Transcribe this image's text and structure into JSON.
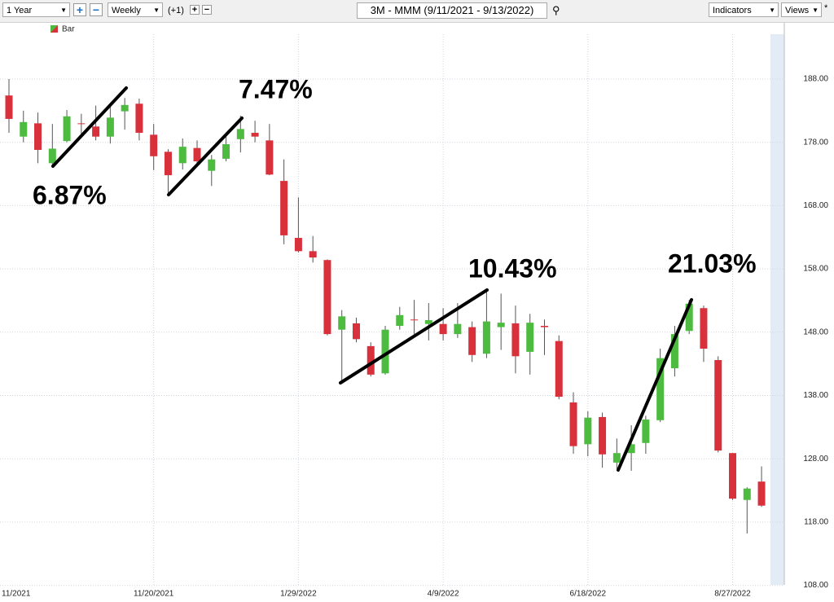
{
  "toolbar": {
    "period": "1 Year",
    "interval": "Weekly",
    "offset": "(+1)",
    "symbol": "3M - MMM (9/11/2021 - 9/13/2022)",
    "indicators": "Indicators",
    "views": "Views",
    "modified": "*"
  },
  "chart_data": {
    "type": "candlestick",
    "legend": "Bar",
    "categories": [
      "11/2021",
      null,
      null,
      null,
      null,
      null,
      null,
      null,
      null,
      null,
      "11/20/2021",
      null,
      null,
      null,
      null,
      null,
      null,
      null,
      null,
      null,
      "1/29/2022",
      null,
      null,
      null,
      null,
      null,
      null,
      null,
      null,
      null,
      "4/9/2022",
      null,
      null,
      null,
      null,
      null,
      null,
      null,
      null,
      null,
      "6/18/2022",
      null,
      null,
      null,
      null,
      null,
      null,
      null,
      null,
      null,
      "8/27/2022",
      null,
      null
    ],
    "open": [
      185.4,
      178.9,
      181.0,
      174.7,
      178.2,
      181.0,
      180.5,
      178.9,
      182.9,
      184.1,
      179.2,
      176.5,
      174.7,
      177.1,
      173.5,
      175.4,
      178.5,
      179.5,
      178.3,
      171.9,
      162.9,
      160.8,
      159.4,
      148.4,
      149.4,
      145.8,
      141.5,
      149.0,
      150.0,
      149.3,
      149.3,
      147.7,
      148.8,
      144.6,
      148.8,
      149.4,
      144.9,
      149.0,
      146.6,
      136.9,
      130.3,
      134.6,
      127.4,
      128.9,
      130.5,
      134.1,
      142.3,
      148.2,
      151.8,
      143.6,
      128.9,
      121.5,
      124.4
    ],
    "high": [
      188.0,
      183.0,
      182.7,
      180.9,
      183.1,
      182.5,
      183.8,
      184.1,
      185.0,
      184.9,
      180.9,
      176.9,
      178.6,
      178.3,
      176.0,
      179.5,
      182.2,
      181.4,
      180.9,
      175.3,
      169.3,
      163.2,
      159.5,
      151.5,
      150.3,
      146.4,
      149.0,
      152.0,
      153.1,
      152.6,
      151.8,
      152.6,
      149.7,
      154.8,
      154.1,
      152.2,
      150.9,
      150.0,
      147.5,
      138.5,
      135.5,
      135.3,
      131.2,
      133.3,
      134.8,
      145.4,
      149.0,
      153.1,
      152.2,
      144.2,
      128.9,
      123.5,
      126.8
    ],
    "low": [
      179.5,
      178.0,
      174.7,
      174.1,
      178.0,
      179.2,
      178.3,
      177.8,
      180.0,
      178.3,
      173.6,
      169.9,
      173.7,
      174.1,
      171.1,
      175.0,
      176.4,
      178.0,
      172.8,
      161.9,
      160.6,
      159.0,
      147.5,
      140.0,
      146.4,
      141.0,
      141.3,
      148.4,
      147.7,
      146.7,
      146.7,
      147.1,
      143.3,
      143.9,
      145.2,
      141.5,
      141.3,
      144.4,
      137.4,
      128.8,
      128.4,
      126.6,
      126.4,
      126.1,
      128.8,
      133.8,
      141.0,
      147.7,
      143.3,
      129.0,
      121.5,
      116.2,
      120.4
    ],
    "close": [
      181.7,
      181.2,
      176.8,
      177.0,
      182.1,
      180.9,
      178.9,
      181.9,
      183.9,
      179.5,
      175.8,
      172.8,
      177.3,
      175.0,
      175.3,
      177.7,
      180.1,
      178.9,
      172.9,
      163.3,
      160.8,
      159.8,
      147.7,
      150.5,
      146.9,
      141.3,
      148.4,
      150.7,
      149.9,
      149.9,
      147.7,
      149.3,
      144.4,
      149.7,
      149.5,
      144.2,
      149.5,
      148.8,
      137.8,
      130.0,
      134.5,
      128.7,
      128.9,
      130.3,
      134.2,
      143.9,
      147.7,
      152.5,
      145.4,
      129.3,
      121.7,
      123.3,
      120.6
    ],
    "up_color": "#4cbb3f",
    "down_color": "#d8313c",
    "ylim": [
      108,
      195
    ],
    "yticks": [
      {
        "value": 108,
        "label": "108.00"
      },
      {
        "value": 118,
        "label": "118.00"
      },
      {
        "value": 128,
        "label": "128.00"
      },
      {
        "value": 138,
        "label": "138.00"
      },
      {
        "value": 148,
        "label": "148.00"
      },
      {
        "value": 158,
        "label": "158.00"
      },
      {
        "value": 168,
        "label": "168.00"
      },
      {
        "value": 178,
        "label": "178.00"
      },
      {
        "value": 188,
        "label": "188.00"
      }
    ],
    "grid": true,
    "annotations": [
      "6.87%",
      "7.47%",
      "10.43%",
      "21.03%"
    ]
  }
}
